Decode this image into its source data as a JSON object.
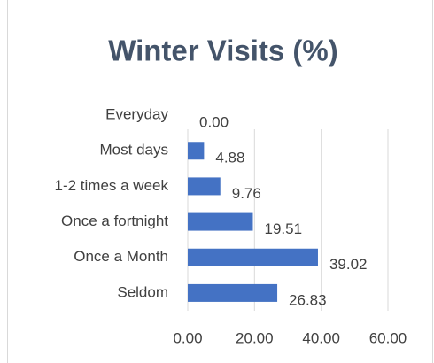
{
  "chart_data": {
    "type": "bar",
    "orientation": "horizontal",
    "title": "Winter Visits (%)",
    "categories": [
      "Everyday",
      "Most days",
      "1-2 times a week",
      "Once a fortnight",
      "Once a Month",
      "Seldom"
    ],
    "values": [
      0,
      4.88,
      9.76,
      19.51,
      39.02,
      26.83
    ],
    "value_labels": [
      "0.00",
      "4.88",
      "9.76",
      "19.51",
      "39.02",
      "26.83"
    ],
    "color": "#4472c4",
    "xlim": [
      0,
      60
    ],
    "xticks": [
      {
        "value": 0,
        "label": "0.00"
      },
      {
        "value": 20,
        "label": "20.00"
      },
      {
        "value": 40,
        "label": "40.00"
      },
      {
        "value": 60,
        "label": "60.00"
      }
    ],
    "grid": true
  }
}
